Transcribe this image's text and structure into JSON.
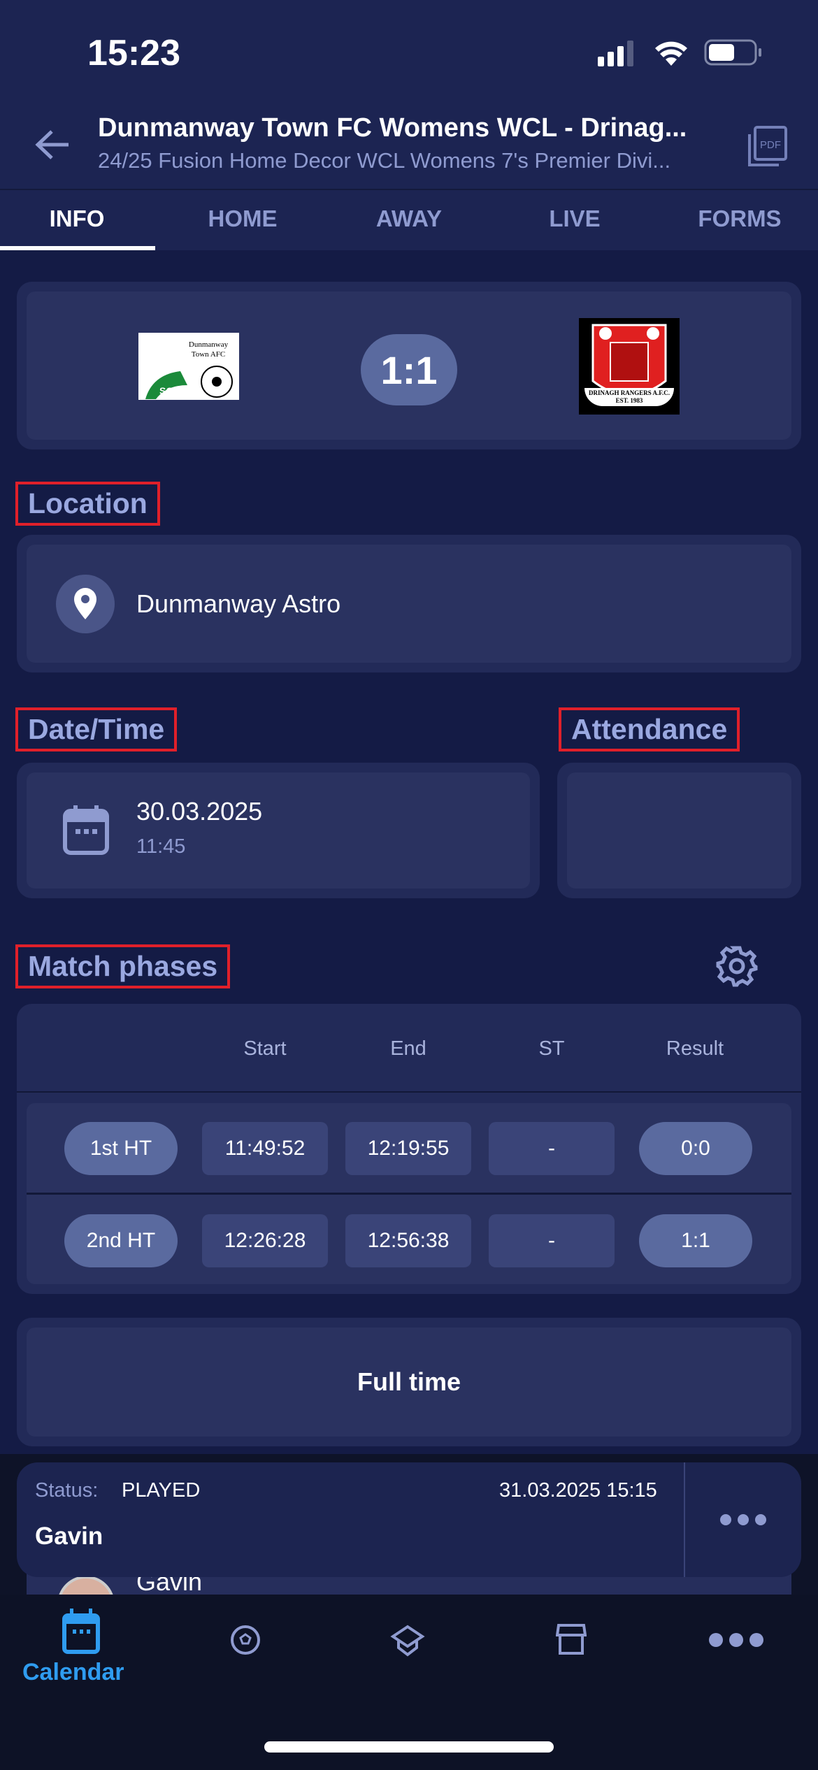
{
  "status_bar": {
    "time": "15:23"
  },
  "header": {
    "title": "Dunmanway Town FC Womens WCL - Drinag...",
    "subtitle": "24/25 Fusion Home Decor WCL Womens 7's Premier Divi...",
    "pdf_label": "PDF"
  },
  "tabs": [
    {
      "label": "INFO"
    },
    {
      "label": "HOME"
    },
    {
      "label": "AWAY"
    },
    {
      "label": "LIVE"
    },
    {
      "label": "FORMS"
    }
  ],
  "score": {
    "value": "1:1",
    "home_logo_text": "Dunmanway Town AFC SOCCER",
    "away_logo_text": "DRINAGH RANGERS A.F.C. EST. 1983"
  },
  "location": {
    "heading": "Location",
    "value": "Dunmanway Astro"
  },
  "datetime": {
    "heading": "Date/Time",
    "date": "30.03.2025",
    "time": "11:45"
  },
  "attendance": {
    "heading": "Attendance",
    "value": ""
  },
  "match_phases": {
    "heading": "Match phases",
    "columns": [
      "Start",
      "End",
      "ST",
      "Result"
    ],
    "rows": [
      {
        "phase": "1st HT",
        "start": "11:49:52",
        "end": "12:19:55",
        "st": "-",
        "result": "0:0"
      },
      {
        "phase": "2nd HT",
        "start": "12:26:28",
        "end": "12:56:38",
        "st": "-",
        "result": "1:1"
      }
    ]
  },
  "full_time": {
    "label": "Full time"
  },
  "status_card": {
    "status_label": "Status:",
    "status_value": "PLAYED",
    "timestamp": "31.03.2025 15:15",
    "name": "Gavin",
    "row_name": "Gavin"
  },
  "bottom_nav": {
    "items": [
      {
        "label": "Calendar",
        "icon": "calendar-icon"
      },
      {
        "icon": "soccer-ball-icon"
      },
      {
        "icon": "graduation-cap-icon"
      },
      {
        "icon": "store-icon"
      },
      {
        "icon": "more-icon"
      }
    ]
  },
  "colors": {
    "accent": "#2f9cf0",
    "background": "#141b45",
    "highlight_box": "#e0202a"
  }
}
